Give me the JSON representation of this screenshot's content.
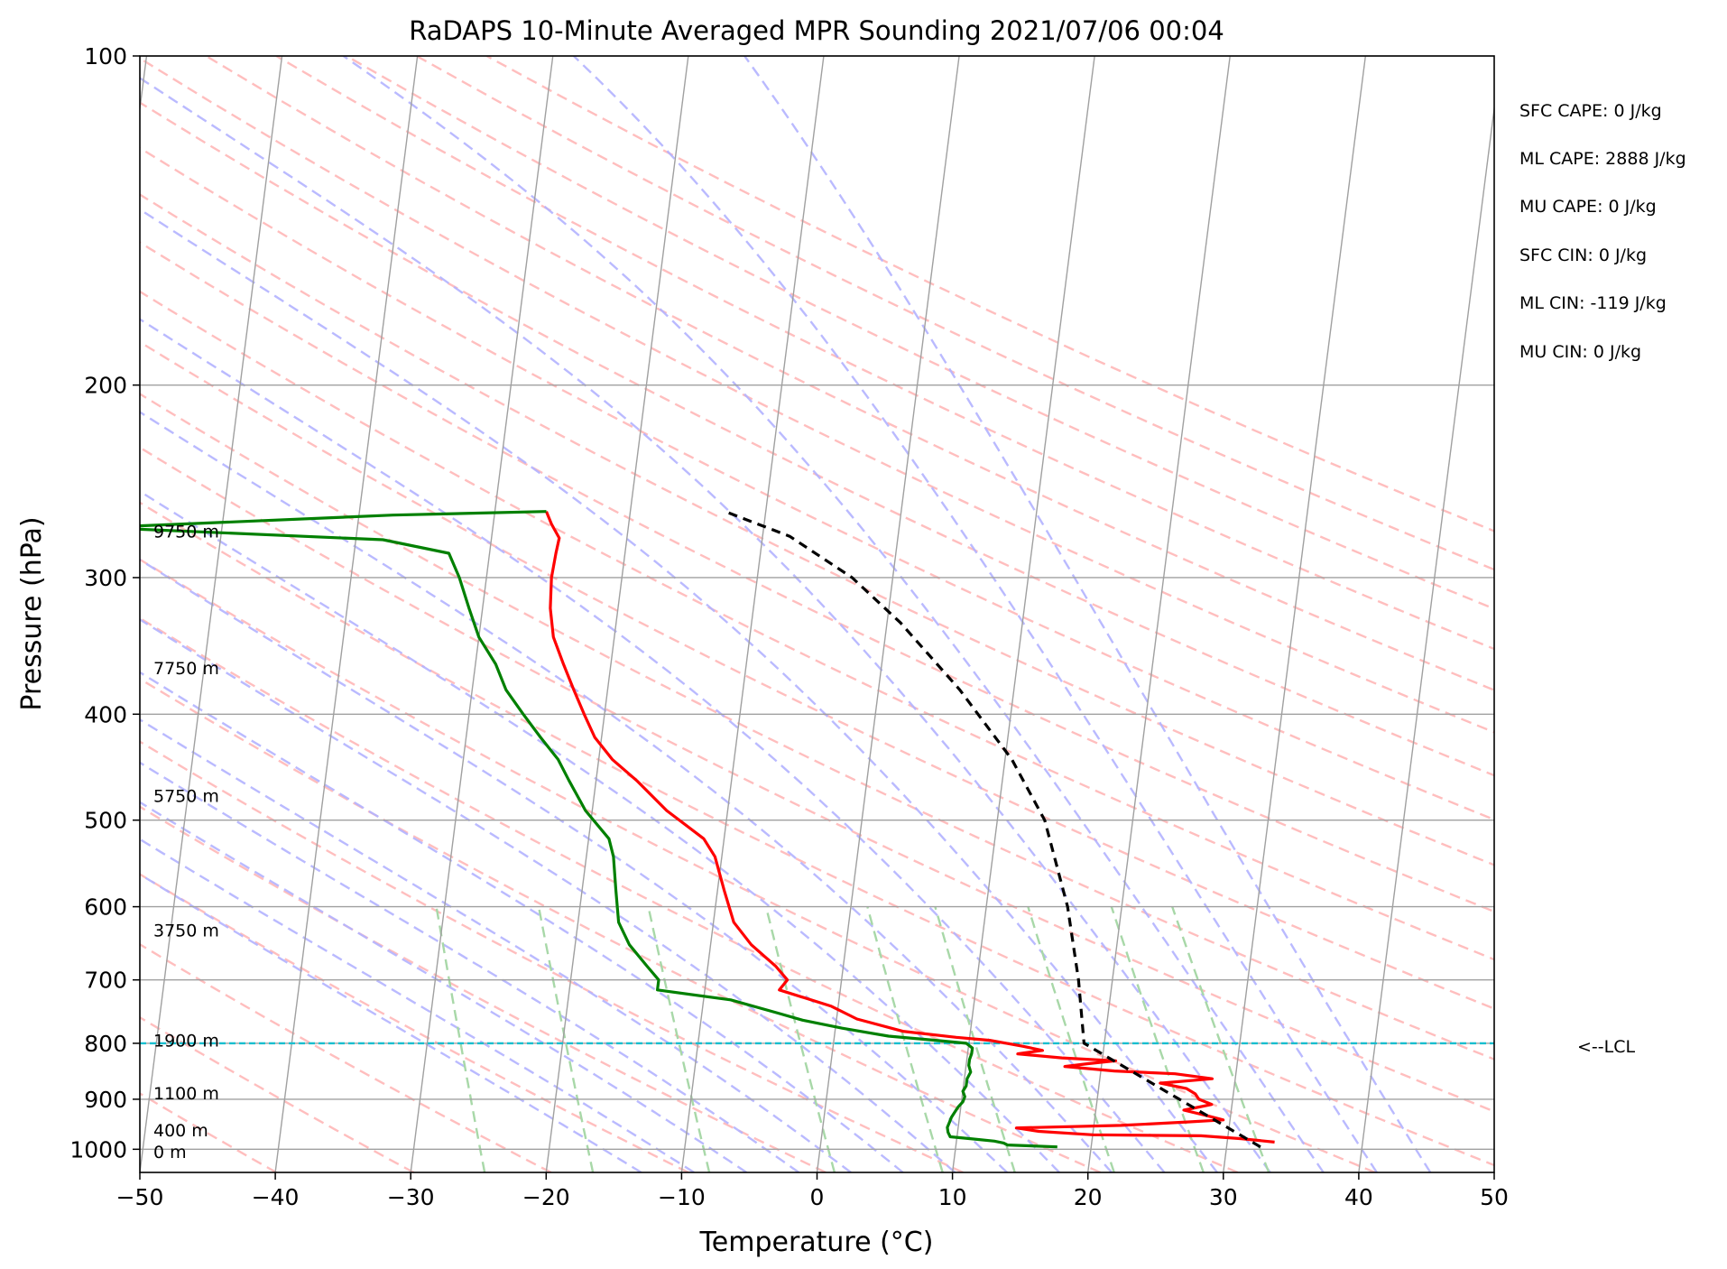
{
  "chart_data": {
    "type": "line",
    "title": "RaDAPS 10-Minute Averaged MPR Sounding 2021/07/06 00:04",
    "xlabel": "Temperature (°C)",
    "ylabel": "Pressure (hPa)",
    "xlim": [
      -50,
      50
    ],
    "ylim_pressure": [
      1050,
      100
    ],
    "y_scale": "log",
    "grid": true,
    "x_ticks": [
      -50,
      -40,
      -30,
      -20,
      -10,
      0,
      10,
      20,
      30,
      40,
      50
    ],
    "x_tick_labels": [
      "−50",
      "−40",
      "−30",
      "−20",
      "−10",
      "0",
      "10",
      "20",
      "30",
      "40",
      "50"
    ],
    "y_ticks": [
      100,
      200,
      300,
      400,
      500,
      600,
      700,
      800,
      900,
      1000
    ],
    "y_tick_labels": [
      "100",
      "200",
      "300",
      "400",
      "500",
      "600",
      "700",
      "800",
      "900",
      "1000"
    ],
    "series": [
      {
        "color": "#ff0000",
        "points": [
          [
            33.5,
            985
          ],
          [
            31.0,
            978
          ],
          [
            28.0,
            972
          ],
          [
            20.0,
            970
          ],
          [
            16.0,
            963
          ],
          [
            14.3,
            956
          ],
          [
            22.0,
            951
          ],
          [
            27.0,
            944
          ],
          [
            29.5,
            940
          ],
          [
            28.0,
            930
          ],
          [
            26.5,
            921
          ],
          [
            28.5,
            910
          ],
          [
            27.5,
            900
          ],
          [
            27.2,
            890
          ],
          [
            26.5,
            880
          ],
          [
            24.5,
            870
          ],
          [
            28.3,
            862
          ],
          [
            25.5,
            853
          ],
          [
            21.0,
            848
          ],
          [
            17.3,
            840
          ],
          [
            19.0,
            835
          ],
          [
            21.0,
            830
          ],
          [
            17.0,
            825
          ],
          [
            13.7,
            818
          ],
          [
            15.5,
            812
          ],
          [
            14.0,
            805
          ],
          [
            11.5,
            795
          ],
          [
            9.0,
            790
          ],
          [
            5.0,
            780
          ],
          [
            1.5,
            760
          ],
          [
            -0.5,
            740
          ],
          [
            -4.5,
            715
          ],
          [
            -4.0,
            700
          ],
          [
            -5.0,
            680
          ],
          [
            -7.0,
            650
          ],
          [
            -8.5,
            620
          ],
          [
            -9.5,
            580
          ],
          [
            -10.5,
            540
          ],
          [
            -11.5,
            520
          ],
          [
            -14.5,
            490
          ],
          [
            -17.0,
            460
          ],
          [
            -19.0,
            440
          ],
          [
            -20.5,
            420
          ],
          [
            -21.5,
            400
          ],
          [
            -22.5,
            380
          ],
          [
            -23.5,
            360
          ],
          [
            -24.5,
            340
          ],
          [
            -25.0,
            320
          ],
          [
            -25.2,
            300
          ],
          [
            -25.1,
            285
          ],
          [
            -25.0,
            276
          ],
          [
            -25.7,
            268
          ],
          [
            -26.2,
            261
          ]
        ]
      },
      {
        "color": "#008000",
        "points": [
          [
            17.5,
            995
          ],
          [
            13.8,
            991
          ],
          [
            13.5,
            987
          ],
          [
            12.8,
            983
          ],
          [
            11.0,
            978
          ],
          [
            9.5,
            974
          ],
          [
            9.3,
            965
          ],
          [
            9.2,
            955
          ],
          [
            9.3,
            945
          ],
          [
            9.4,
            935
          ],
          [
            9.6,
            925
          ],
          [
            9.8,
            915
          ],
          [
            10.1,
            905
          ],
          [
            10.2,
            895
          ],
          [
            10.0,
            885
          ],
          [
            10.2,
            875
          ],
          [
            10.2,
            862
          ],
          [
            10.4,
            850
          ],
          [
            10.2,
            838
          ],
          [
            10.2,
            828
          ],
          [
            10.3,
            818
          ],
          [
            10.3,
            808
          ],
          [
            9.8,
            800
          ],
          [
            7.5,
            795
          ],
          [
            4.0,
            788
          ],
          [
            0.5,
            775
          ],
          [
            -2.5,
            762
          ],
          [
            -4.5,
            750
          ],
          [
            -8.0,
            730
          ],
          [
            -13.5,
            715
          ],
          [
            -13.5,
            700
          ],
          [
            -14.5,
            680
          ],
          [
            -16.0,
            650
          ],
          [
            -17.0,
            620
          ],
          [
            -17.5,
            580
          ],
          [
            -18.0,
            540
          ],
          [
            -18.5,
            520
          ],
          [
            -20.5,
            490
          ],
          [
            -22.0,
            460
          ],
          [
            -23.0,
            440
          ],
          [
            -24.5,
            420
          ],
          [
            -26.0,
            400
          ],
          [
            -27.5,
            380
          ],
          [
            -28.5,
            360
          ],
          [
            -30.0,
            340
          ],
          [
            -31.0,
            320
          ],
          [
            -32.0,
            300
          ],
          [
            -33.0,
            285
          ],
          [
            -38.0,
            277
          ],
          [
            -59.0,
            270
          ],
          [
            -37.5,
            263
          ],
          [
            -26.2,
            261
          ]
        ]
      },
      {
        "color": "#000000",
        "dashed": true,
        "points": [
          [
            32.5,
            995
          ],
          [
            18.5,
            800
          ],
          [
            17.5,
            700
          ],
          [
            16.0,
            600
          ],
          [
            13.5,
            500
          ],
          [
            10.5,
            440
          ],
          [
            6.0,
            380
          ],
          [
            1.0,
            330
          ],
          [
            -3.0,
            300
          ],
          [
            -8.0,
            275
          ],
          [
            -13.0,
            261
          ]
        ]
      }
    ],
    "lcl_pressure_hpa": 800,
    "lcl_label": "<--LCL",
    "height_labels": [
      {
        "text": "9750 m",
        "p": 272
      },
      {
        "text": "7750 m",
        "p": 363
      },
      {
        "text": "5750 m",
        "p": 475
      },
      {
        "text": "3750 m",
        "p": 630
      },
      {
        "text": "1900 m",
        "p": 795
      },
      {
        "text": "1100 m",
        "p": 888
      },
      {
        "text": "400 m",
        "p": 960
      },
      {
        "text": "0 m",
        "p": 1005
      }
    ],
    "indices": [
      "SFC CAPE: 0 J/kg",
      "ML CAPE: 2888 J/kg",
      "MU CAPE: 0 J/kg",
      "SFC CIN: 0 J/kg",
      "ML CIN: -119 J/kg",
      "MU CIN: 0 J/kg"
    ],
    "colors": {
      "temperature": "#ff0000",
      "dewpoint": "#008000",
      "parcel": "#000000",
      "lcl_line": "#17becf",
      "isotherm_grid": "#a0a0a0",
      "dry_adiabat": "#ffb3b3",
      "moist_adiabat": "#b3b3ff",
      "mixing_ratio": "#a8d8a8"
    }
  }
}
